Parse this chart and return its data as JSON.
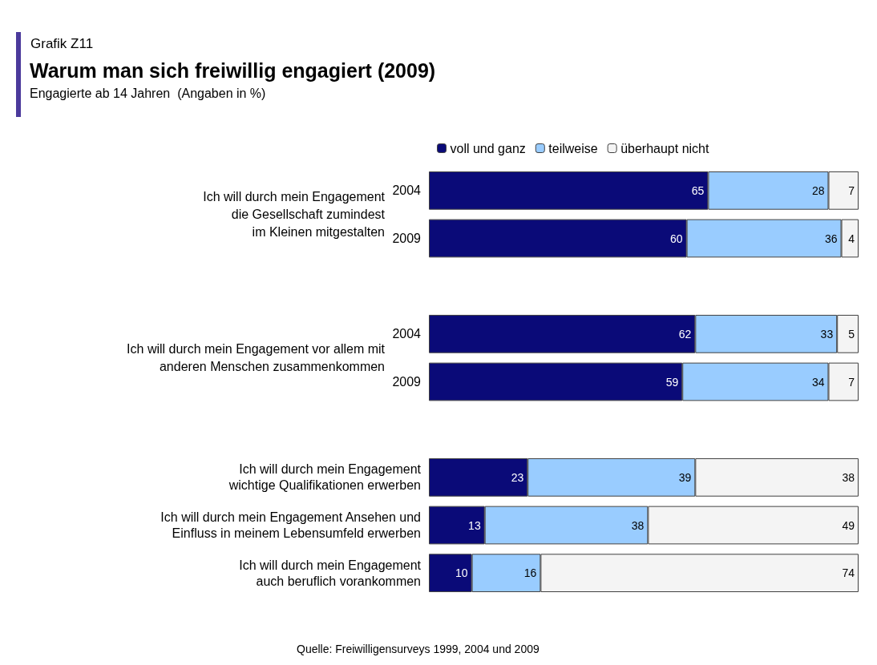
{
  "chart_data": {
    "type": "bar",
    "orientation": "horizontal",
    "stacked": true,
    "title": "Warum man sich freiwillig engagiert (2009)",
    "subtitle": "Engagierte ab 14 Jahren  (Angaben in %)",
    "categories": [
      "2004",
      "2009",
      null,
      "2004",
      "2009",
      null,
      "Ich will durch mein Engagement\nwichtige Qualifikationen erwerben",
      "Ich will durch mein Engagement Ansehen und\nEinfluss in meinem Lebensumfeld erwerben",
      "Ich will durch mein Engagement\nauch beruflich vorankommen"
    ],
    "series": [
      {
        "name": "voll und ganz",
        "color": "#0a0a78",
        "values": [
          65,
          60,
          null,
          62,
          59,
          null,
          23,
          13,
          10
        ]
      },
      {
        "name": "teilweise",
        "color": "#99ccff",
        "values": [
          28,
          36,
          null,
          33,
          34,
          null,
          39,
          38,
          16
        ]
      },
      {
        "name": "überhaupt nicht",
        "color": "#f4f4f4",
        "values": [
          7,
          4,
          null,
          5,
          7,
          null,
          38,
          49,
          74
        ]
      }
    ],
    "xlim": [
      0,
      100
    ],
    "data_labels": true,
    "legend": "top",
    "tick_labels": "y",
    "annotations": [
      "Grafik Z11",
      "Ich will durch mein Engagement\ndie Gesellschaft zumindest\nim Kleinen mitgestalten",
      "Ich will durch mein Engagement vor allem mit\nanderen Menschen zusammenkommen",
      "Quelle: Freiwilligensurveys 1999, 2004 und 2009"
    ]
  }
}
